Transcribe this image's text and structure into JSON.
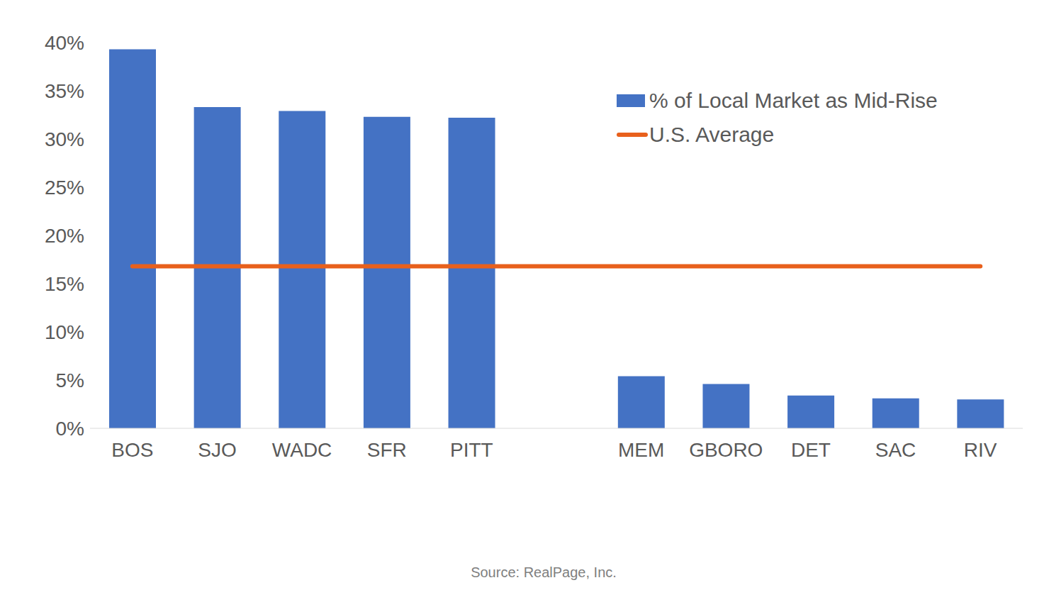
{
  "chart_data": {
    "type": "bar",
    "source": "Source: RealPage, Inc.",
    "categories": [
      "BOS",
      "SJO",
      "WADC",
      "SFR",
      "PITT",
      null,
      "MEM",
      "GBORO",
      "DET",
      "SAC",
      "RIV"
    ],
    "series": [
      {
        "name": "% of Local Market as Mid-Rise",
        "type": "bar",
        "color": "#4472c4",
        "values": [
          39.3,
          33.3,
          32.9,
          32.3,
          32.2,
          null,
          5.4,
          4.6,
          3.4,
          3.1,
          3.0
        ]
      },
      {
        "name": "U.S. Average",
        "type": "line",
        "color": "#e8601c",
        "values": [
          16.8,
          16.8,
          16.8,
          16.8,
          16.8,
          16.8,
          16.8,
          16.8,
          16.8,
          16.8,
          16.8
        ]
      }
    ],
    "ylim": [
      0,
      40
    ],
    "yticks": [
      {
        "value": 0,
        "label": "0%"
      },
      {
        "value": 5,
        "label": "5%"
      },
      {
        "value": 10,
        "label": "10%"
      },
      {
        "value": 15,
        "label": "15%"
      },
      {
        "value": 20,
        "label": "20%"
      },
      {
        "value": 25,
        "label": "25%"
      },
      {
        "value": 30,
        "label": "30%"
      },
      {
        "value": 35,
        "label": "35%"
      },
      {
        "value": 40,
        "label": "40%"
      }
    ],
    "grid": false,
    "legend": "top-right"
  }
}
